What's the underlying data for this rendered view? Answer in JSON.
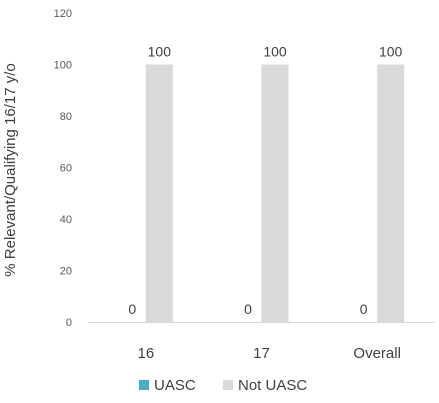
{
  "chart_data": {
    "type": "bar",
    "categories": [
      "16",
      "17",
      "Overall"
    ],
    "series": [
      {
        "name": "UASC",
        "values": [
          0,
          0,
          0
        ],
        "color": "#4bacc6"
      },
      {
        "name": "Not UASC",
        "values": [
          100,
          100,
          100
        ],
        "color": "#d9d9d9"
      }
    ],
    "data_labels": true,
    "ylabel": "% Relevant/Qualifying 16/17 y/o",
    "ylim": [
      0,
      120
    ],
    "yticks": [
      0,
      20,
      40,
      60,
      80,
      100,
      120
    ],
    "grid": false,
    "legend_position": "bottom"
  }
}
